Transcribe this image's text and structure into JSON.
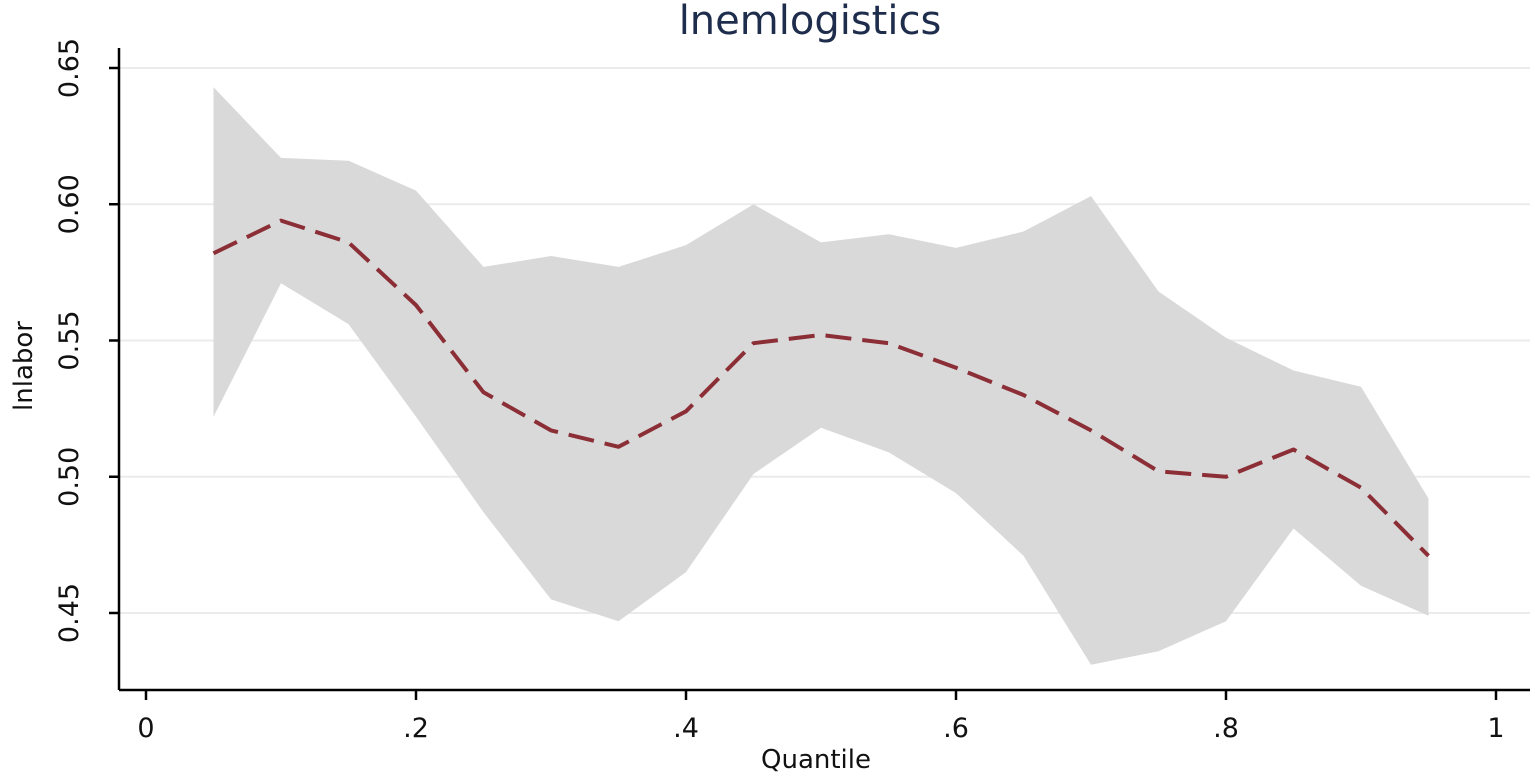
{
  "chart_data": {
    "type": "line",
    "title": "lnemlogistics",
    "xlabel": "Quantile",
    "ylabel": "lnlabor",
    "xlim": [
      0,
      1
    ],
    "ylim": [
      0.435,
      0.66
    ],
    "x_ticks": [
      0,
      0.2,
      0.4,
      0.6,
      0.8,
      1
    ],
    "x_tick_labels": [
      "0",
      ".2",
      ".4",
      ".6",
      ".8",
      "1"
    ],
    "y_ticks": [
      0.45,
      0.5,
      0.55,
      0.6,
      0.65
    ],
    "y_tick_labels": [
      "0.45",
      "0.50",
      "0.55",
      "0.60",
      "0.65"
    ],
    "grid": true,
    "x": [
      0.05,
      0.1,
      0.15,
      0.2,
      0.25,
      0.3,
      0.35,
      0.4,
      0.45,
      0.5,
      0.55,
      0.6,
      0.65,
      0.7,
      0.75,
      0.8,
      0.85,
      0.9,
      0.95
    ],
    "series": [
      {
        "values": [
          0.582,
          0.594,
          0.586,
          0.563,
          0.531,
          0.517,
          0.511,
          0.524,
          0.549,
          0.552,
          0.549,
          0.54,
          0.53,
          0.517,
          0.502,
          0.5,
          0.51,
          0.496,
          0.471
        ],
        "color": "#8b2e36",
        "style": "dashed"
      }
    ],
    "confidence_band": {
      "upper": [
        0.643,
        0.617,
        0.616,
        0.605,
        0.577,
        0.581,
        0.577,
        0.585,
        0.6,
        0.586,
        0.589,
        0.584,
        0.59,
        0.603,
        0.568,
        0.551,
        0.539,
        0.533,
        0.492
      ],
      "lower": [
        0.522,
        0.571,
        0.556,
        0.522,
        0.487,
        0.455,
        0.447,
        0.465,
        0.501,
        0.518,
        0.509,
        0.494,
        0.471,
        0.431,
        0.436,
        0.447,
        0.481,
        0.46,
        0.449
      ],
      "color": "#d9d9d9"
    },
    "colors": {
      "grid": "#ebebeb",
      "axis": "#000000",
      "title": "#1f2d4d"
    }
  }
}
